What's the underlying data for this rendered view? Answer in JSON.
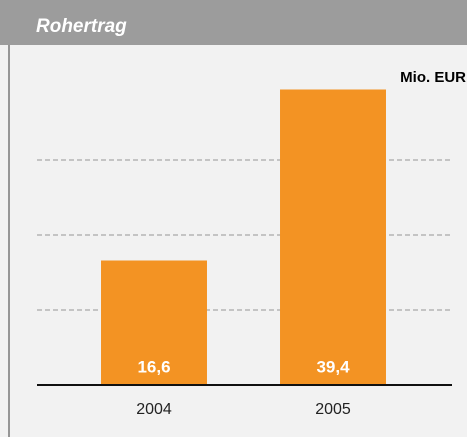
{
  "chart_data": {
    "type": "bar",
    "title": "Rohertrag",
    "unit": "Mio. EUR",
    "categories": [
      "2004",
      "2005"
    ],
    "values": [
      16.6,
      39.4
    ],
    "value_labels": [
      "16,6",
      "39,4"
    ],
    "color": "#f39323",
    "ylim": [
      0,
      40
    ],
    "yticks": [
      10,
      20,
      30
    ],
    "grid": true
  }
}
